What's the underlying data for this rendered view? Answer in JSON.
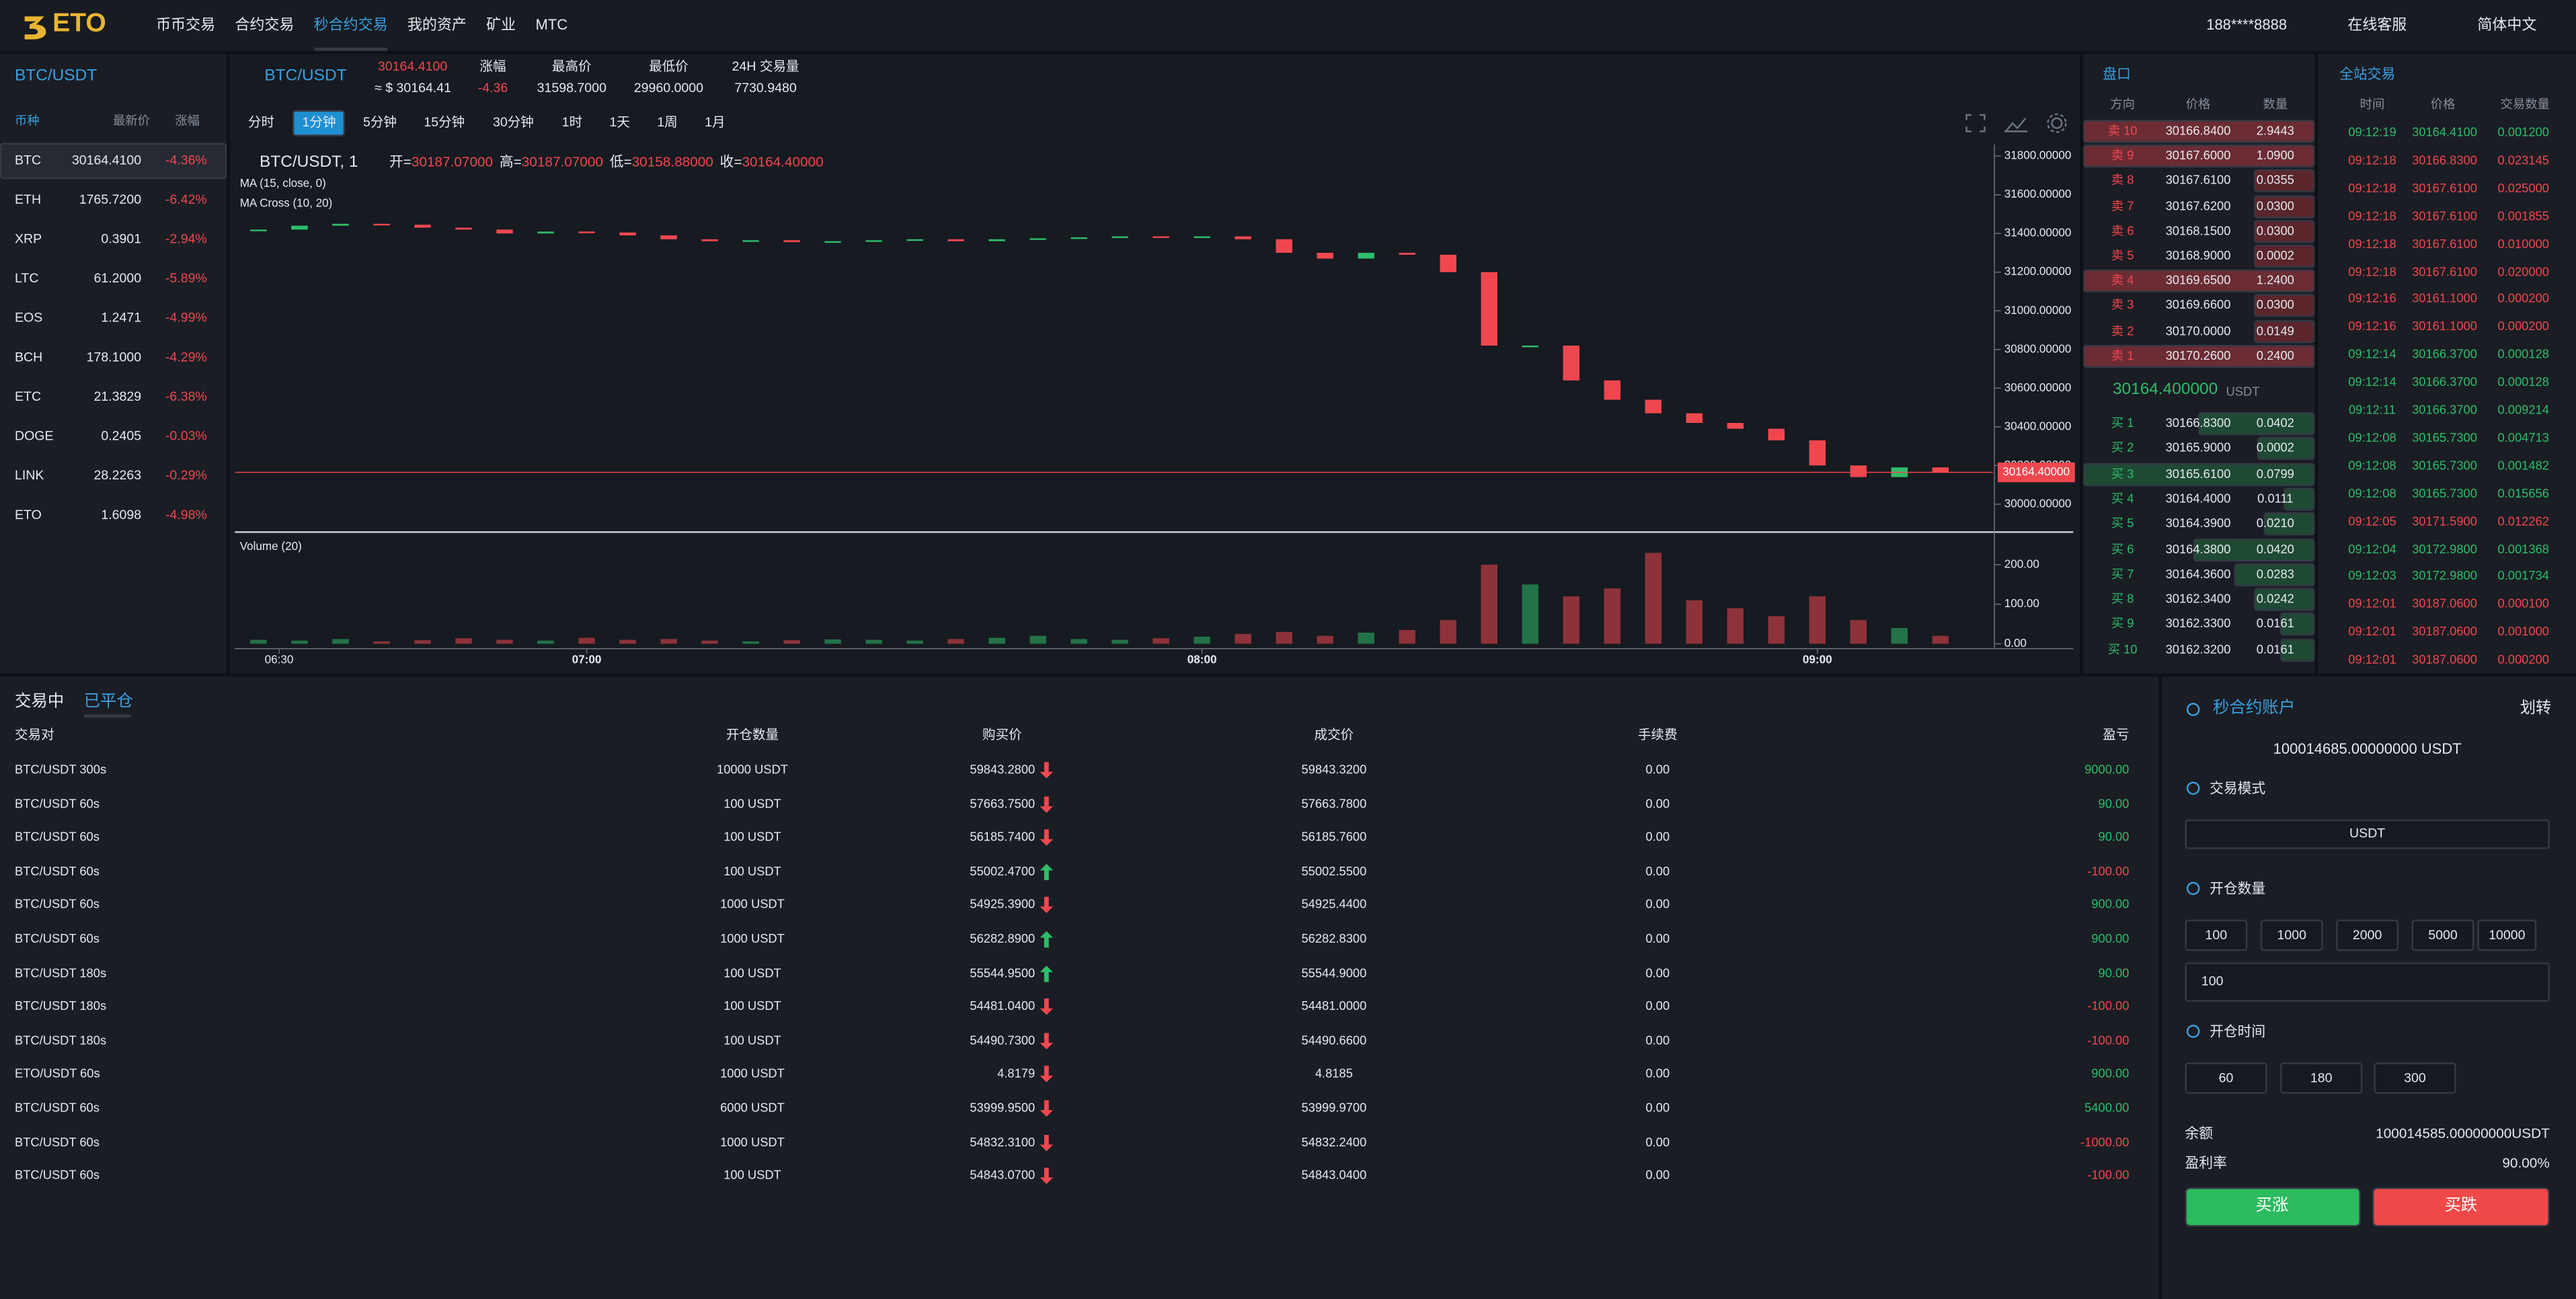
{
  "nav": {
    "logo": "ETO",
    "items": [
      "币币交易",
      "合约交易",
      "秒合约交易",
      "我的资产",
      "矿业",
      "MTC"
    ],
    "active": 2,
    "user": "188****8888",
    "service": "在线客服",
    "language": "简体中文"
  },
  "markets": {
    "title": "BTC/USDT",
    "headers": [
      "币种",
      "最新价",
      "涨幅"
    ],
    "rows": [
      [
        "BTC",
        "30164.4100",
        "-4.36%"
      ],
      [
        "ETH",
        "1765.7200",
        "-6.42%"
      ],
      [
        "XRP",
        "0.3901",
        "-2.94%"
      ],
      [
        "LTC",
        "61.2000",
        "-5.89%"
      ],
      [
        "EOS",
        "1.2471",
        "-4.99%"
      ],
      [
        "BCH",
        "178.1000",
        "-4.29%"
      ],
      [
        "ETC",
        "21.3829",
        "-6.38%"
      ],
      [
        "DOGE",
        "0.2405",
        "-0.03%"
      ],
      [
        "LINK",
        "28.2263",
        "-0.29%"
      ],
      [
        "ETO",
        "1.6098",
        "-4.98%"
      ]
    ]
  },
  "ticker": {
    "pair": "BTC/USDT",
    "price": "30164.4100",
    "approx": "≈ $ 30164.41",
    "stats": [
      [
        "涨幅",
        "-4.36"
      ],
      [
        "最高价",
        "31598.7000"
      ],
      [
        "最低价",
        "29960.0000"
      ],
      [
        "24H 交易量",
        "7730.9480"
      ]
    ]
  },
  "intervals": {
    "items": [
      "分时",
      "1分钟",
      "5分钟",
      "15分钟",
      "30分钟",
      "1时",
      "1天",
      "1周",
      "1月"
    ],
    "active": 1
  },
  "chart_data": {
    "type": "candlestick",
    "title": "BTC/USDT, 1",
    "ohlc": [
      [
        "开=",
        "30187.07000"
      ],
      [
        "高=",
        "30187.07000"
      ],
      [
        "低=",
        "30158.88000"
      ],
      [
        "收=",
        "30164.40000"
      ]
    ],
    "indicators": [
      "MA (15, close, 0)",
      "MA Cross (10, 20)"
    ],
    "volume_title": "Volume (20)",
    "x": [
      388,
      392,
      396,
      400,
      404,
      408,
      412,
      416,
      420,
      424,
      428,
      432,
      436,
      440,
      444,
      448,
      452,
      456,
      460,
      464,
      468,
      472,
      476,
      480,
      484,
      488,
      492,
      496,
      500,
      504,
      508,
      512,
      516,
      520,
      524,
      528,
      532,
      536,
      540,
      544,
      548,
      552
    ],
    "close": [
      31420,
      31440,
      31450,
      31445,
      31430,
      31420,
      31400,
      31410,
      31405,
      31390,
      31370,
      31360,
      31365,
      31355,
      31360,
      31365,
      31370,
      31360,
      31370,
      31375,
      31380,
      31385,
      31380,
      31385,
      31370,
      31300,
      31270,
      31300,
      31290,
      31200,
      30820,
      30820,
      30640,
      30540,
      30470,
      30420,
      30390,
      30330,
      30200,
      30140,
      30190,
      30164.4
    ],
    "volume": [
      10,
      8,
      12,
      6,
      9,
      14,
      10,
      8,
      15,
      10,
      12,
      8,
      6,
      9,
      11,
      10,
      8,
      12,
      15,
      20,
      12,
      10,
      14,
      18,
      25,
      30,
      20,
      28,
      35,
      60,
      200,
      150,
      120,
      140,
      230,
      110,
      90,
      70,
      120,
      60,
      40,
      20
    ],
    "xlim": [
      385.7,
      557.1
    ],
    "xticks": [
      {
        "value": 390,
        "label": "06:30"
      },
      {
        "value": 420,
        "label": "07:00"
      },
      {
        "value": 480,
        "label": "08:00"
      },
      {
        "value": 540,
        "label": "09:00"
      }
    ],
    "ylim": [
      29864,
      31843
    ],
    "yticks": [
      {
        "value": 30000,
        "label": "30000.00000"
      },
      {
        "value": 30200,
        "label": "30200.00000"
      },
      {
        "value": 30400,
        "label": "30400.00000"
      },
      {
        "value": 30600,
        "label": "30600.00000"
      },
      {
        "value": 30800,
        "label": "30800.00000"
      },
      {
        "value": 31000,
        "label": "31000.00000"
      },
      {
        "value": 31200,
        "label": "31200.00000"
      },
      {
        "value": 31400,
        "label": "31400.00000"
      },
      {
        "value": 31600,
        "label": "31600.00000"
      },
      {
        "value": 31800,
        "label": "31800.00000"
      }
    ],
    "volume_ylim": [
      0,
      270
    ],
    "volume_yticks": [
      {
        "value": 0,
        "label": "0.00"
      },
      {
        "value": 100,
        "label": "100.00"
      },
      {
        "value": 200,
        "label": "200.00"
      }
    ],
    "price_label": "30164.40000",
    "up_color": "#2ebd6a",
    "down_color": "#f0474f"
  },
  "orderbook": {
    "title": "盘口",
    "headers": [
      "方向",
      "价格",
      "数量"
    ],
    "asks": [
      [
        "卖 10",
        "30166.8400",
        "2.9443"
      ],
      [
        "卖 9",
        "30167.6000",
        "1.0900"
      ],
      [
        "卖 8",
        "30167.6100",
        "0.0355"
      ],
      [
        "卖 7",
        "30167.6200",
        "0.0300"
      ],
      [
        "卖 6",
        "30168.1500",
        "0.0300"
      ],
      [
        "卖 5",
        "30168.9000",
        "0.0002"
      ],
      [
        "卖 4",
        "30169.6500",
        "1.2400"
      ],
      [
        "卖 3",
        "30169.6600",
        "0.0300"
      ],
      [
        "卖 2",
        "30170.0000",
        "0.0149"
      ],
      [
        "卖 1",
        "30170.2600",
        "0.2400"
      ]
    ],
    "mid": "30164.400000",
    "mid_unit": "USDT",
    "bids": [
      [
        "买 1",
        "30166.8300",
        "0.0402"
      ],
      [
        "买 2",
        "30165.9000",
        "0.0002"
      ],
      [
        "买 3",
        "30165.6100",
        "0.0799"
      ],
      [
        "买 4",
        "30164.4000",
        "0.0111"
      ],
      [
        "买 5",
        "30164.3900",
        "0.0210"
      ],
      [
        "买 6",
        "30164.3800",
        "0.0420"
      ],
      [
        "买 7",
        "30164.3600",
        "0.0283"
      ],
      [
        "买 8",
        "30162.3400",
        "0.0242"
      ],
      [
        "买 9",
        "30162.3300",
        "0.0161"
      ],
      [
        "买 10",
        "30162.3200",
        "0.0161"
      ]
    ]
  },
  "trades": {
    "title": "全站交易",
    "headers": [
      "时间",
      "价格",
      "交易数量"
    ],
    "rows": [
      [
        "09:12:19",
        "30164.4100",
        "0.001200"
      ],
      [
        "09:12:18",
        "30166.8300",
        "0.023145"
      ],
      [
        "09:12:18",
        "30167.6100",
        "0.025000"
      ],
      [
        "09:12:18",
        "30167.6100",
        "0.001855"
      ],
      [
        "09:12:18",
        "30167.6100",
        "0.010000"
      ],
      [
        "09:12:18",
        "30167.6100",
        "0.020000"
      ],
      [
        "09:12:16",
        "30161.1000",
        "0.000200"
      ],
      [
        "09:12:16",
        "30161.1000",
        "0.000200"
      ],
      [
        "09:12:14",
        "30166.3700",
        "0.000128"
      ],
      [
        "09:12:14",
        "30166.3700",
        "0.000128"
      ],
      [
        "09:12:11",
        "30166.3700",
        "0.009214"
      ],
      [
        "09:12:08",
        "30165.7300",
        "0.004713"
      ],
      [
        "09:12:08",
        "30165.7300",
        "0.001482"
      ],
      [
        "09:12:08",
        "30165.7300",
        "0.015656"
      ],
      [
        "09:12:05",
        "30171.5900",
        "0.012262"
      ],
      [
        "09:12:04",
        "30172.9800",
        "0.001368"
      ],
      [
        "09:12:03",
        "30172.9800",
        "0.001734"
      ],
      [
        "09:12:01",
        "30187.0600",
        "0.000100"
      ],
      [
        "09:12:01",
        "30187.0600",
        "0.001000"
      ],
      [
        "09:12:01",
        "30187.0600",
        "0.000200"
      ]
    ],
    "sides": [
      "buy",
      "sell",
      "sell",
      "sell",
      "sell",
      "sell",
      "sell",
      "sell",
      "buy",
      "buy",
      "buy",
      "buy",
      "buy",
      "buy",
      "sell",
      "buy",
      "buy",
      "sell",
      "sell",
      "sell"
    ]
  },
  "orders": {
    "tabs": [
      "交易中",
      "已平仓"
    ],
    "active": 1,
    "headers": [
      "交易对",
      "开仓数量",
      "购买价",
      "成交价",
      "手续费",
      "盈亏"
    ],
    "rows": [
      [
        "BTC/USDT 300s",
        "10000 USDT",
        "59843.2800",
        "59843.3200",
        "0.00",
        "9000.00"
      ],
      [
        "BTC/USDT 60s",
        "100 USDT",
        "57663.7500",
        "57663.7800",
        "0.00",
        "90.00"
      ],
      [
        "BTC/USDT 60s",
        "100 USDT",
        "56185.7400",
        "56185.7600",
        "0.00",
        "90.00"
      ],
      [
        "BTC/USDT 60s",
        "100 USDT",
        "55002.4700",
        "55002.5500",
        "0.00",
        "-100.00"
      ],
      [
        "BTC/USDT 60s",
        "1000 USDT",
        "54925.3900",
        "54925.4400",
        "0.00",
        "900.00"
      ],
      [
        "BTC/USDT 60s",
        "1000 USDT",
        "56282.8900",
        "56282.8300",
        "0.00",
        "900.00"
      ],
      [
        "BTC/USDT 180s",
        "100 USDT",
        "55544.9500",
        "55544.9000",
        "0.00",
        "90.00"
      ],
      [
        "BTC/USDT 180s",
        "100 USDT",
        "54481.0400",
        "54481.0000",
        "0.00",
        "-100.00"
      ],
      [
        "BTC/USDT 180s",
        "100 USDT",
        "54490.7300",
        "54490.6600",
        "0.00",
        "-100.00"
      ],
      [
        "ETO/USDT 60s",
        "1000 USDT",
        "4.8179",
        "4.8185",
        "0.00",
        "900.00"
      ],
      [
        "BTC/USDT 60s",
        "6000 USDT",
        "53999.9500",
        "53999.9700",
        "0.00",
        "5400.00"
      ],
      [
        "BTC/USDT 60s",
        "1000 USDT",
        "54832.3100",
        "54832.2400",
        "0.00",
        "-1000.00"
      ],
      [
        "BTC/USDT 60s",
        "100 USDT",
        "54843.0700",
        "54843.0400",
        "0.00",
        "-100.00"
      ]
    ],
    "directions": [
      "down",
      "down",
      "down",
      "up",
      "down",
      "up",
      "up",
      "down",
      "down",
      "down",
      "down",
      "down",
      "down"
    ]
  },
  "account": {
    "title": "秒合约账户",
    "transfer": "划转",
    "balance": "100014685.00000000 USDT",
    "mode_label": "交易模式",
    "mode": "USDT",
    "amount_label": "开仓数量",
    "amounts": [
      "100",
      "1000",
      "2000",
      "5000",
      "10000"
    ],
    "amount_input": "100",
    "time_label": "开仓时间",
    "times": [
      "60",
      "180",
      "300"
    ],
    "remain_label": "余额",
    "remain": "100014585.00000000USDT",
    "rate_label": "盈利率",
    "rate": "90.00%",
    "buy_up": "买涨",
    "buy_down": "买跌"
  }
}
